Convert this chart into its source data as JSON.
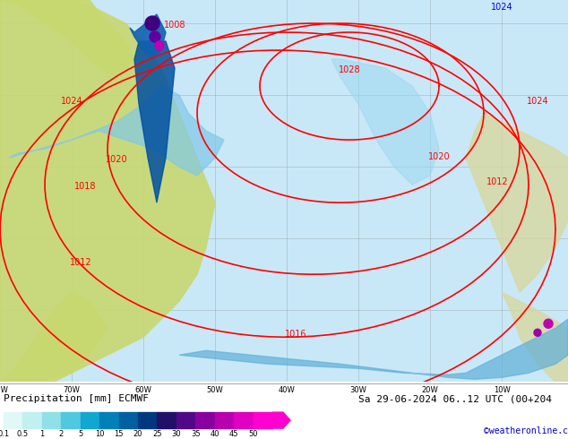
{
  "title_left": "Precipitation [mm] ECMWF",
  "title_right": "Sa 29-06-2024 06..12 UTC (00+204",
  "credit": "©weatheronline.co.uk",
  "colorbar_values": [
    0.1,
    0.5,
    1,
    2,
    5,
    10,
    15,
    20,
    25,
    30,
    35,
    40,
    45,
    50
  ],
  "colorbar_colors": [
    "#e0f8f8",
    "#c8f0f0",
    "#a0e0e8",
    "#70c8e0",
    "#40b0d8",
    "#1890c8",
    "#0070b0",
    "#004898",
    "#002880",
    "#301070",
    "#600890",
    "#9000a0",
    "#c000b0",
    "#e800c0",
    "#ff00d0"
  ],
  "background_color": "#d0e8f8",
  "land_color_ocean": "#c8e8f8",
  "fig_width": 6.34,
  "fig_height": 4.9,
  "dpi": 100
}
